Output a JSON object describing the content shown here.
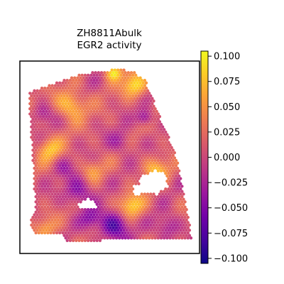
{
  "chart_data": {
    "type": "heatmap",
    "subtype": "spatial-scatter",
    "title": "ZH8811Abulk",
    "subtitle": "EGR2 activity",
    "xlabel": "",
    "ylabel": "",
    "axes_ticks": "none",
    "colormap": "plasma",
    "color_range": [
      -0.105,
      0.105
    ],
    "colorbar": {
      "ticks": [
        0.1,
        0.075,
        0.05,
        0.025,
        0.0,
        -0.025,
        -0.05,
        -0.075,
        -0.1
      ],
      "tick_labels": [
        "0.100",
        "0.075",
        "0.050",
        "0.025",
        "0.000",
        "−0.025",
        "−0.050",
        "−0.075",
        "−0.100"
      ]
    },
    "grid": false,
    "legend": "colorbar-right",
    "colors": {
      "plasma_stops": [
        "#0d0887",
        "#46039f",
        "#7201a8",
        "#9c179e",
        "#bd3786",
        "#d8576b",
        "#ed7953",
        "#fb9f3a",
        "#fdca26",
        "#f0f921"
      ],
      "frame": "#000000",
      "background": "#ffffff"
    }
  }
}
